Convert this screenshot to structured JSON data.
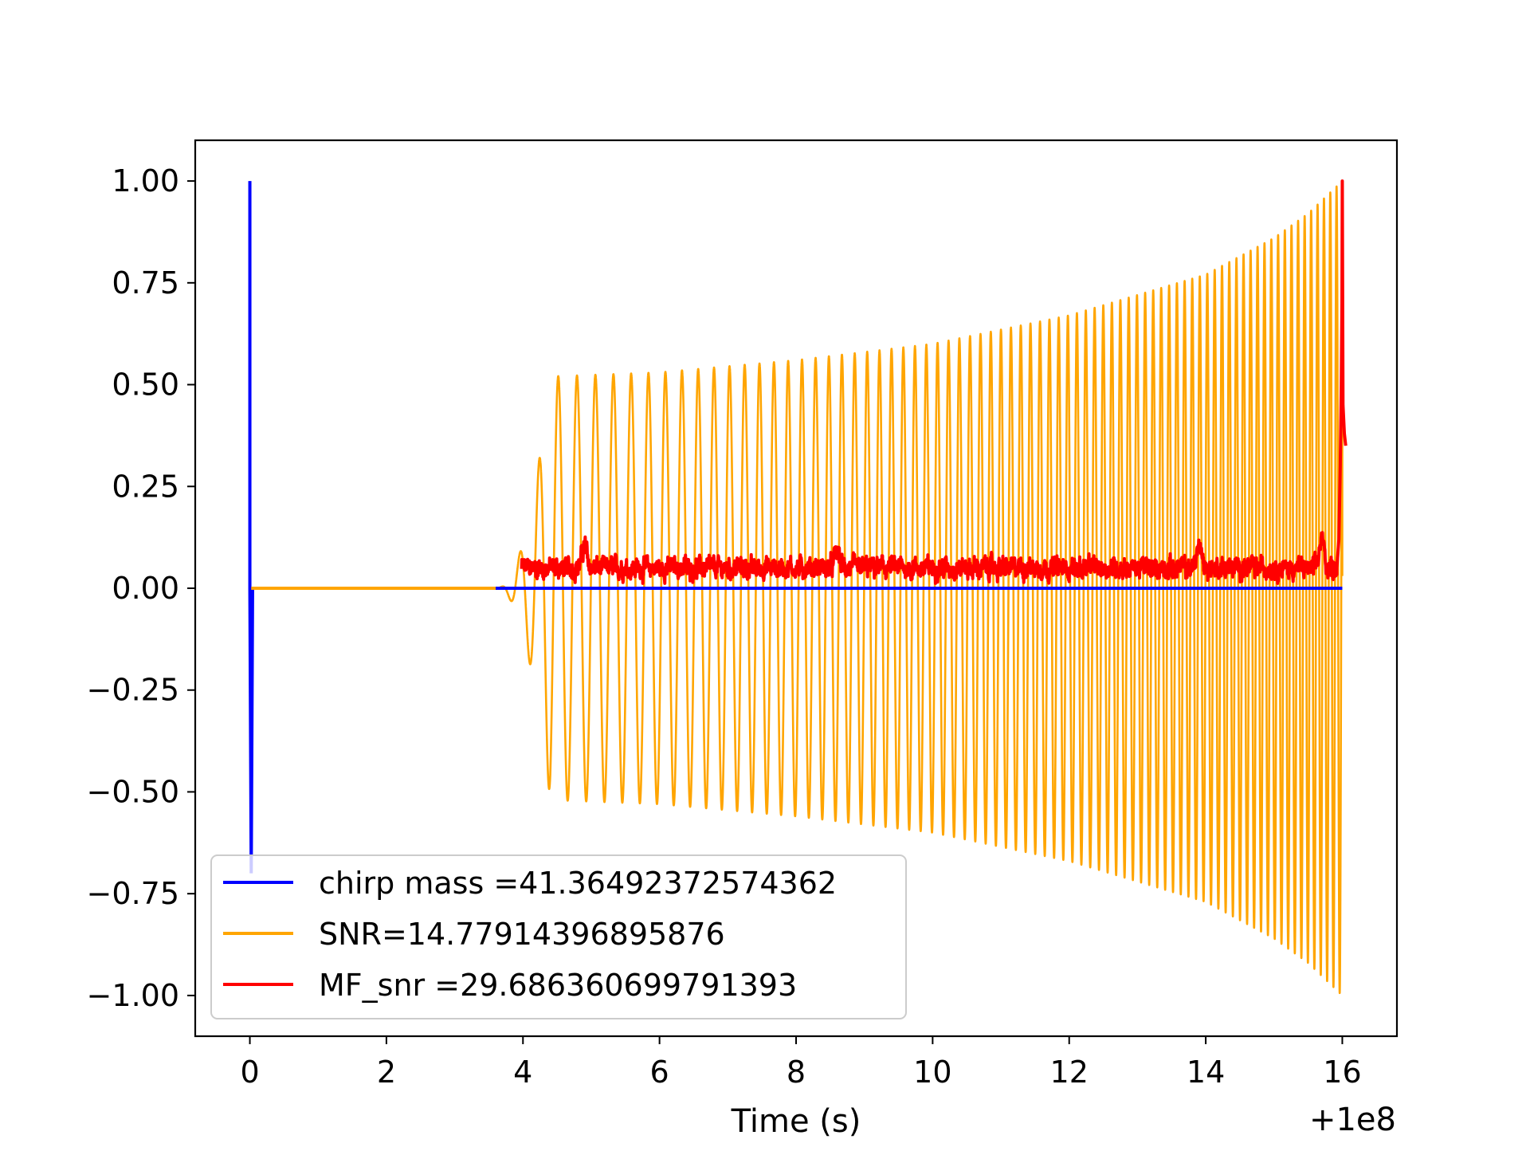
{
  "chart_data": {
    "type": "line",
    "title": "",
    "xlabel": "Time (s)",
    "ylabel": "",
    "x_offset_label": "+1e8",
    "xlim": [
      -0.8,
      16.8
    ],
    "ylim": [
      -1.1,
      1.1
    ],
    "x_ticks": [
      0,
      2,
      4,
      6,
      8,
      10,
      12,
      14,
      16
    ],
    "x_tick_labels": [
      "0",
      "2",
      "4",
      "6",
      "8",
      "10",
      "12",
      "14",
      "16"
    ],
    "y_ticks": [
      1.0,
      0.75,
      0.5,
      0.25,
      0.0,
      -0.25,
      -0.5,
      -0.75,
      -1.0
    ],
    "y_tick_labels": [
      "1.00",
      "0.75",
      "0.50",
      "0.25",
      "0.00",
      "−0.25",
      "−0.50",
      "−0.75",
      "−1.00"
    ],
    "grid": false,
    "legend_position": "lower-left",
    "series": [
      {
        "name": "chirp mass =41.36492372574362",
        "color": "#0000ff",
        "kind": "spike",
        "points": [
          [
            0.0,
            1.0
          ],
          [
            0.0,
            0.95
          ],
          [
            0.0,
            0.0
          ],
          [
            0.02,
            -0.7
          ],
          [
            0.04,
            0.0
          ],
          [
            16.0,
            0.0
          ]
        ]
      },
      {
        "name": "SNR=14.77914396895876",
        "color": "#ffa500",
        "kind": "chirp",
        "start": 0.0,
        "onset": 3.6,
        "plateau_start": 4.4,
        "end": 16.0,
        "envelope": [
          [
            4.4,
            0.52
          ],
          [
            6.0,
            0.53
          ],
          [
            8.0,
            0.56
          ],
          [
            10.0,
            0.6
          ],
          [
            12.0,
            0.67
          ],
          [
            14.0,
            0.77
          ],
          [
            15.0,
            0.86
          ],
          [
            15.5,
            0.92
          ],
          [
            16.0,
            1.0
          ]
        ],
        "freq_start": 3.5,
        "freq_end": 11.0
      },
      {
        "name": "MF_snr =29.686360699791393",
        "color": "#ff0000",
        "kind": "noise",
        "start": 3.98,
        "end": 16.0,
        "baseline": 0.05,
        "peaks": [
          [
            4.9,
            0.13
          ],
          [
            8.6,
            0.11
          ],
          [
            13.9,
            0.13
          ],
          [
            15.7,
            0.15
          ],
          [
            15.97,
            0.35
          ],
          [
            16.0,
            1.0
          ],
          [
            16.05,
            0.35
          ]
        ]
      }
    ]
  }
}
